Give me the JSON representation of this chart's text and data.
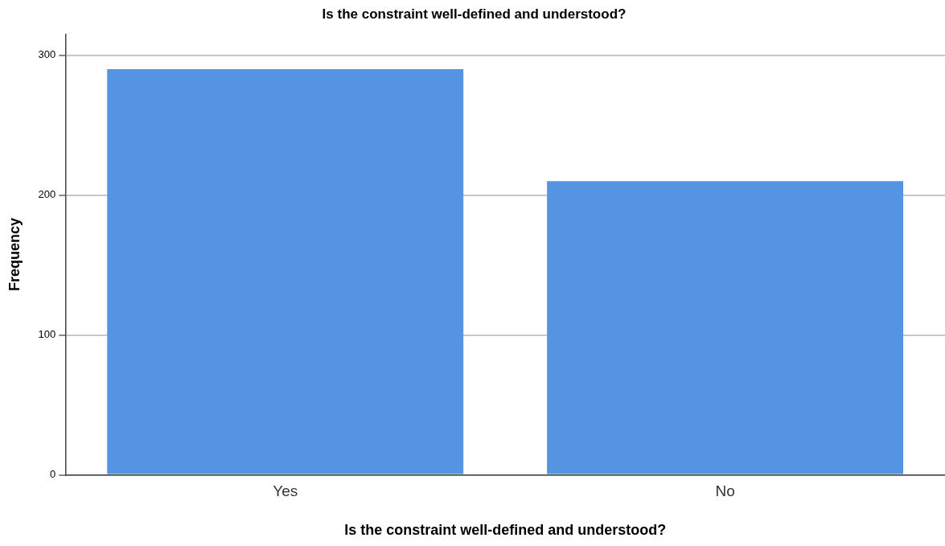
{
  "chart_data": {
    "type": "bar",
    "title": "Is the constraint well-defined and understood?",
    "xlabel": "Is the constraint well-defined and understood?",
    "ylabel": "Frequency",
    "categories": [
      "Yes",
      "No"
    ],
    "values": [
      290,
      210
    ],
    "color": "#5594e3",
    "ylim": [
      0,
      315
    ],
    "yticks": [
      0,
      100,
      200,
      300
    ],
    "grid": "y",
    "legend": false
  }
}
